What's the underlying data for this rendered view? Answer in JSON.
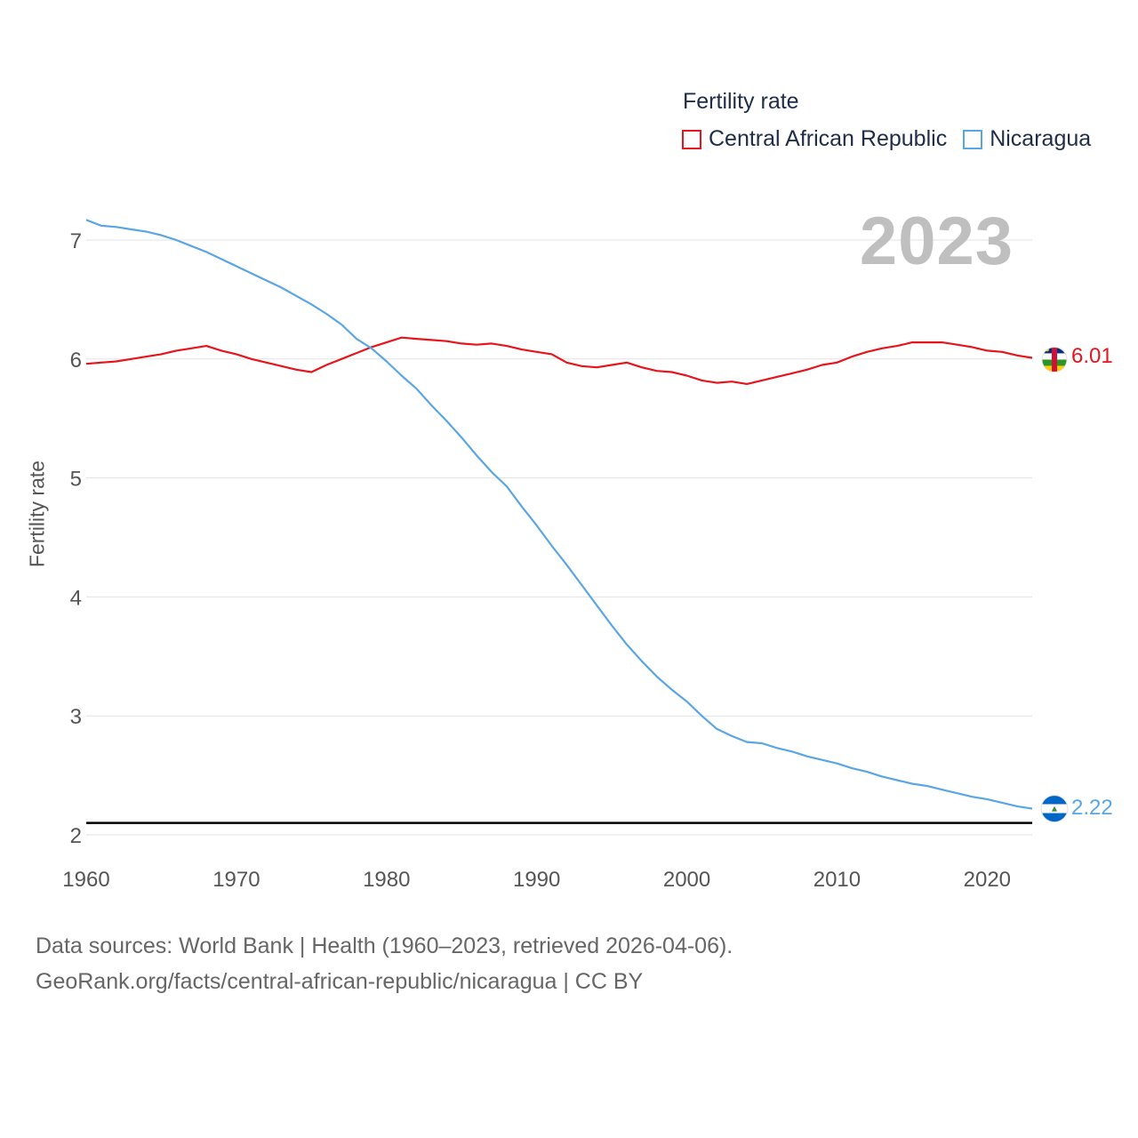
{
  "legend": {
    "title": "Fertility rate",
    "items": [
      {
        "label": "Central African Republic",
        "color": "#e8141b"
      },
      {
        "label": "Nicaragua",
        "color": "#5aa5e6"
      }
    ]
  },
  "year_label": "2023",
  "sources": {
    "line1": "Data sources: World Bank | Health (1960–2023, retrieved 2026-04-06).",
    "line2": "GeoRank.org/facts/central-african-republic/nicaragua | CC BY"
  },
  "end_labels": {
    "car": "6.01",
    "nicaragua": "2.22"
  },
  "flags": [
    {
      "name": "central-african-republic-flag-icon"
    },
    {
      "name": "nicaragua-flag-icon"
    }
  ],
  "chart_data": {
    "type": "line",
    "title": "Fertility rate",
    "xlabel": "",
    "ylabel": "Fertility rate",
    "xlim": [
      1960,
      2023
    ],
    "ylim": [
      1.95,
      7.25
    ],
    "x_ticks": [
      1960,
      1970,
      1980,
      1990,
      2000,
      2010,
      2020
    ],
    "y_ticks": [
      2,
      3,
      4,
      5,
      6,
      7
    ],
    "reference_line": 2.1,
    "x": [
      1960,
      1961,
      1962,
      1963,
      1964,
      1965,
      1966,
      1967,
      1968,
      1969,
      1970,
      1971,
      1972,
      1973,
      1974,
      1975,
      1976,
      1977,
      1978,
      1979,
      1980,
      1981,
      1982,
      1983,
      1984,
      1985,
      1986,
      1987,
      1988,
      1989,
      1990,
      1991,
      1992,
      1993,
      1994,
      1995,
      1996,
      1997,
      1998,
      1999,
      2000,
      2001,
      2002,
      2003,
      2004,
      2005,
      2006,
      2007,
      2008,
      2009,
      2010,
      2011,
      2012,
      2013,
      2014,
      2015,
      2016,
      2017,
      2018,
      2019,
      2020,
      2021,
      2022,
      2023
    ],
    "series": [
      {
        "name": "Central African Republic",
        "color": "#e8141b",
        "values": [
          5.96,
          5.97,
          5.98,
          6.0,
          6.02,
          6.04,
          6.07,
          6.09,
          6.11,
          6.07,
          6.04,
          6.0,
          5.97,
          5.94,
          5.91,
          5.89,
          5.95,
          6.0,
          6.05,
          6.1,
          6.14,
          6.18,
          6.17,
          6.16,
          6.15,
          6.13,
          6.12,
          6.13,
          6.11,
          6.08,
          6.06,
          6.04,
          5.97,
          5.94,
          5.93,
          5.95,
          5.97,
          5.93,
          5.9,
          5.89,
          5.86,
          5.82,
          5.8,
          5.81,
          5.79,
          5.82,
          5.85,
          5.88,
          5.91,
          5.95,
          5.97,
          6.02,
          6.06,
          6.09,
          6.11,
          6.14,
          6.14,
          6.14,
          6.12,
          6.1,
          6.07,
          6.06,
          6.03,
          6.01
        ]
      },
      {
        "name": "Nicaragua",
        "color": "#5aa5e6",
        "values": [
          7.17,
          7.12,
          7.11,
          7.09,
          7.07,
          7.04,
          7.0,
          6.95,
          6.9,
          6.84,
          6.78,
          6.72,
          6.66,
          6.6,
          6.53,
          6.46,
          6.38,
          6.29,
          6.17,
          6.09,
          5.98,
          5.86,
          5.75,
          5.61,
          5.48,
          5.34,
          5.19,
          5.05,
          4.93,
          4.76,
          4.6,
          4.43,
          4.27,
          4.1,
          3.93,
          3.76,
          3.6,
          3.46,
          3.33,
          3.22,
          3.12,
          3.0,
          2.89,
          2.83,
          2.78,
          2.77,
          2.73,
          2.7,
          2.66,
          2.63,
          2.6,
          2.56,
          2.53,
          2.49,
          2.46,
          2.43,
          2.41,
          2.38,
          2.35,
          2.32,
          2.3,
          2.27,
          2.24,
          2.22
        ]
      }
    ]
  }
}
